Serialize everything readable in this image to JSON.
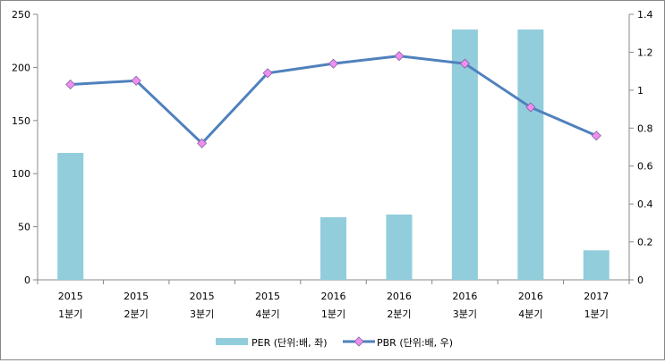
{
  "chart_data": {
    "type": "bar+line",
    "categories": [
      [
        "2015",
        "1분기"
      ],
      [
        "2015",
        "2분기"
      ],
      [
        "2015",
        "3분기"
      ],
      [
        "2015",
        "4분기"
      ],
      [
        "2016",
        "1분기"
      ],
      [
        "2016",
        "2분기"
      ],
      [
        "2016",
        "3분기"
      ],
      [
        "2016",
        "4분기"
      ],
      [
        "2017",
        "1분기"
      ]
    ],
    "series": [
      {
        "name": "PER (단위:배, 좌)",
        "type": "bar",
        "axis": "left",
        "color": "#92CDDC",
        "values": [
          119.5,
          null,
          null,
          null,
          59,
          61.5,
          235.7,
          235.7,
          27.8
        ]
      },
      {
        "name": "PBR (단위:배, 우)",
        "type": "line",
        "axis": "right",
        "color": "#4F81BD",
        "marker_color": "#F08EF0",
        "values": [
          1.03,
          1.05,
          0.72,
          1.09,
          1.14,
          1.18,
          1.14,
          0.91,
          0.76
        ]
      }
    ],
    "left_axis": {
      "min": 0,
      "max": 250,
      "step": 50,
      "ticks": [
        "0",
        "50",
        "100",
        "150",
        "200",
        "250"
      ]
    },
    "right_axis": {
      "min": 0,
      "max": 1.4,
      "step": 0.2,
      "ticks": [
        "0",
        "0.2",
        "0.4",
        "0.6",
        "0.8",
        "1",
        "1.2",
        "1.4"
      ]
    },
    "legend": "bottom",
    "grid": false
  }
}
